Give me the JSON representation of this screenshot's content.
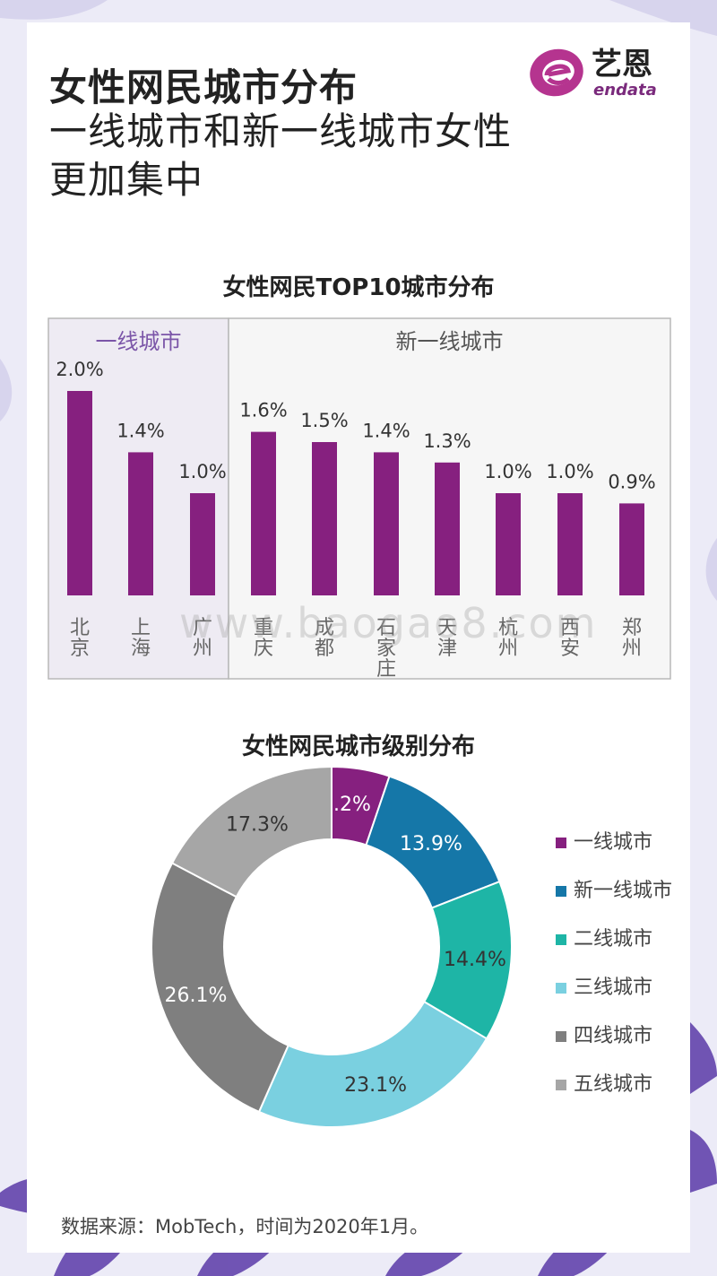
{
  "page": {
    "title": "女性网民城市分布",
    "subtitle": "一线城市和新一线城市女性更加集中",
    "logo_cn": "艺恩",
    "logo_en": "endata",
    "source": "数据来源：MobTech，时间为2020年1月。",
    "watermark": "www.baogao8.com"
  },
  "chart_data": [
    {
      "type": "bar",
      "title": "女性网民TOP10城市分布",
      "groups": [
        {
          "label": "一线城市",
          "categories": [
            "北京",
            "上海",
            "广州"
          ],
          "values": [
            2.0,
            1.4,
            1.0
          ]
        },
        {
          "label": "新一线城市",
          "categories": [
            "重庆",
            "成都",
            "石家庄",
            "天津",
            "杭州",
            "西安",
            "郑州"
          ],
          "values": [
            1.6,
            1.5,
            1.4,
            1.3,
            1.0,
            1.0,
            0.9
          ]
        }
      ],
      "categories": [
        "北京",
        "上海",
        "广州",
        "重庆",
        "成都",
        "石家庄",
        "天津",
        "杭州",
        "西安",
        "郑州"
      ],
      "values": [
        2.0,
        1.4,
        1.0,
        1.6,
        1.5,
        1.4,
        1.3,
        1.0,
        1.0,
        0.9
      ],
      "labels": [
        "2.0%",
        "1.4%",
        "1.0%",
        "1.6%",
        "1.5%",
        "1.4%",
        "1.3%",
        "1.0%",
        "1.0%",
        "0.9%"
      ],
      "unit": "%",
      "color": "#86207f"
    },
    {
      "type": "pie",
      "title": "女性网民城市级别分布",
      "categories": [
        "一线城市",
        "新一线城市",
        "二线城市",
        "三线城市",
        "四线城市",
        "五线城市"
      ],
      "values": [
        5.2,
        13.9,
        14.4,
        23.1,
        26.1,
        17.3
      ],
      "labels": [
        "5.2%",
        "13.9%",
        "14.4%",
        "23.1%",
        "26.1%",
        "17.3%"
      ],
      "colors": [
        "#86207f",
        "#1577a8",
        "#1eb5a6",
        "#7ad0e0",
        "#7f7f7f",
        "#a6a6a6"
      ],
      "label_colors": [
        "#ffffff",
        "#ffffff",
        "#333333",
        "#333333",
        "#ffffff",
        "#333333"
      ],
      "legend_position": "right",
      "donut": true
    }
  ]
}
